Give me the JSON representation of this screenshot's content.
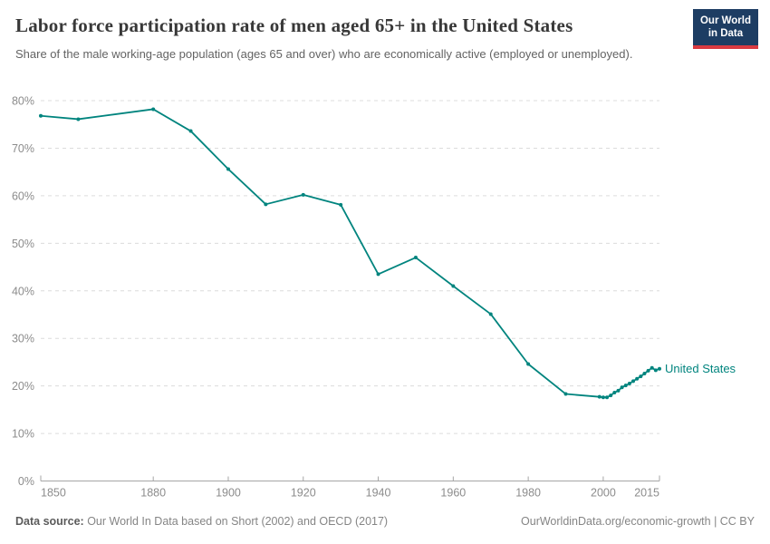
{
  "chart_data": {
    "type": "line",
    "title": "Labor force participation rate of men aged 65+ in the United States",
    "subtitle": "Share of the male working-age population (ages 65 and over) who are economically active (employed or unemployed).",
    "xlabel": "",
    "ylabel": "",
    "xlim": [
      1850,
      2015
    ],
    "ylim": [
      0,
      80
    ],
    "x_ticks": [
      1850,
      1880,
      1900,
      1920,
      1940,
      1960,
      1980,
      2000,
      2015
    ],
    "y_ticks": [
      0,
      10,
      20,
      30,
      40,
      50,
      60,
      70,
      80
    ],
    "y_tick_suffix": "%",
    "grid": "horizontal-dashed",
    "legend": "end-of-line-label",
    "series": [
      {
        "name": "United States",
        "color": "#00847E",
        "points": [
          [
            1850,
            76.8
          ],
          [
            1860,
            76.1
          ],
          [
            1880,
            78.2
          ],
          [
            1890,
            73.6
          ],
          [
            1900,
            65.6
          ],
          [
            1910,
            58.2
          ],
          [
            1920,
            60.2
          ],
          [
            1930,
            58.1
          ],
          [
            1940,
            43.5
          ],
          [
            1950,
            47.0
          ],
          [
            1960,
            41.0
          ],
          [
            1970,
            35.1
          ],
          [
            1980,
            24.6
          ],
          [
            1990,
            18.3
          ],
          [
            1999,
            17.7
          ],
          [
            2000,
            17.6
          ],
          [
            2001,
            17.6
          ],
          [
            2002,
            18.0
          ],
          [
            2003,
            18.6
          ],
          [
            2004,
            19.0
          ],
          [
            2005,
            19.7
          ],
          [
            2006,
            20.1
          ],
          [
            2007,
            20.5
          ],
          [
            2008,
            21.0
          ],
          [
            2009,
            21.5
          ],
          [
            2010,
            22.0
          ],
          [
            2011,
            22.6
          ],
          [
            2012,
            23.2
          ],
          [
            2013,
            23.8
          ],
          [
            2014,
            23.3
          ],
          [
            2015,
            23.6
          ]
        ]
      }
    ]
  },
  "logo": {
    "line1": "Our World",
    "line2": "in Data",
    "bg_color": "#1d3d63",
    "accent_color": "#d93a41"
  },
  "footer": {
    "source_label": "Data source:",
    "source_text": " Our World In Data based on Short (2002) and OECD (2017)",
    "credit": "OurWorldinData.org/economic-growth | CC BY"
  },
  "colors": {
    "line": "#00847E",
    "gridline": "#dcdcdc",
    "axis": "#a5a5a5",
    "tick_text": "#8c8c8c"
  }
}
